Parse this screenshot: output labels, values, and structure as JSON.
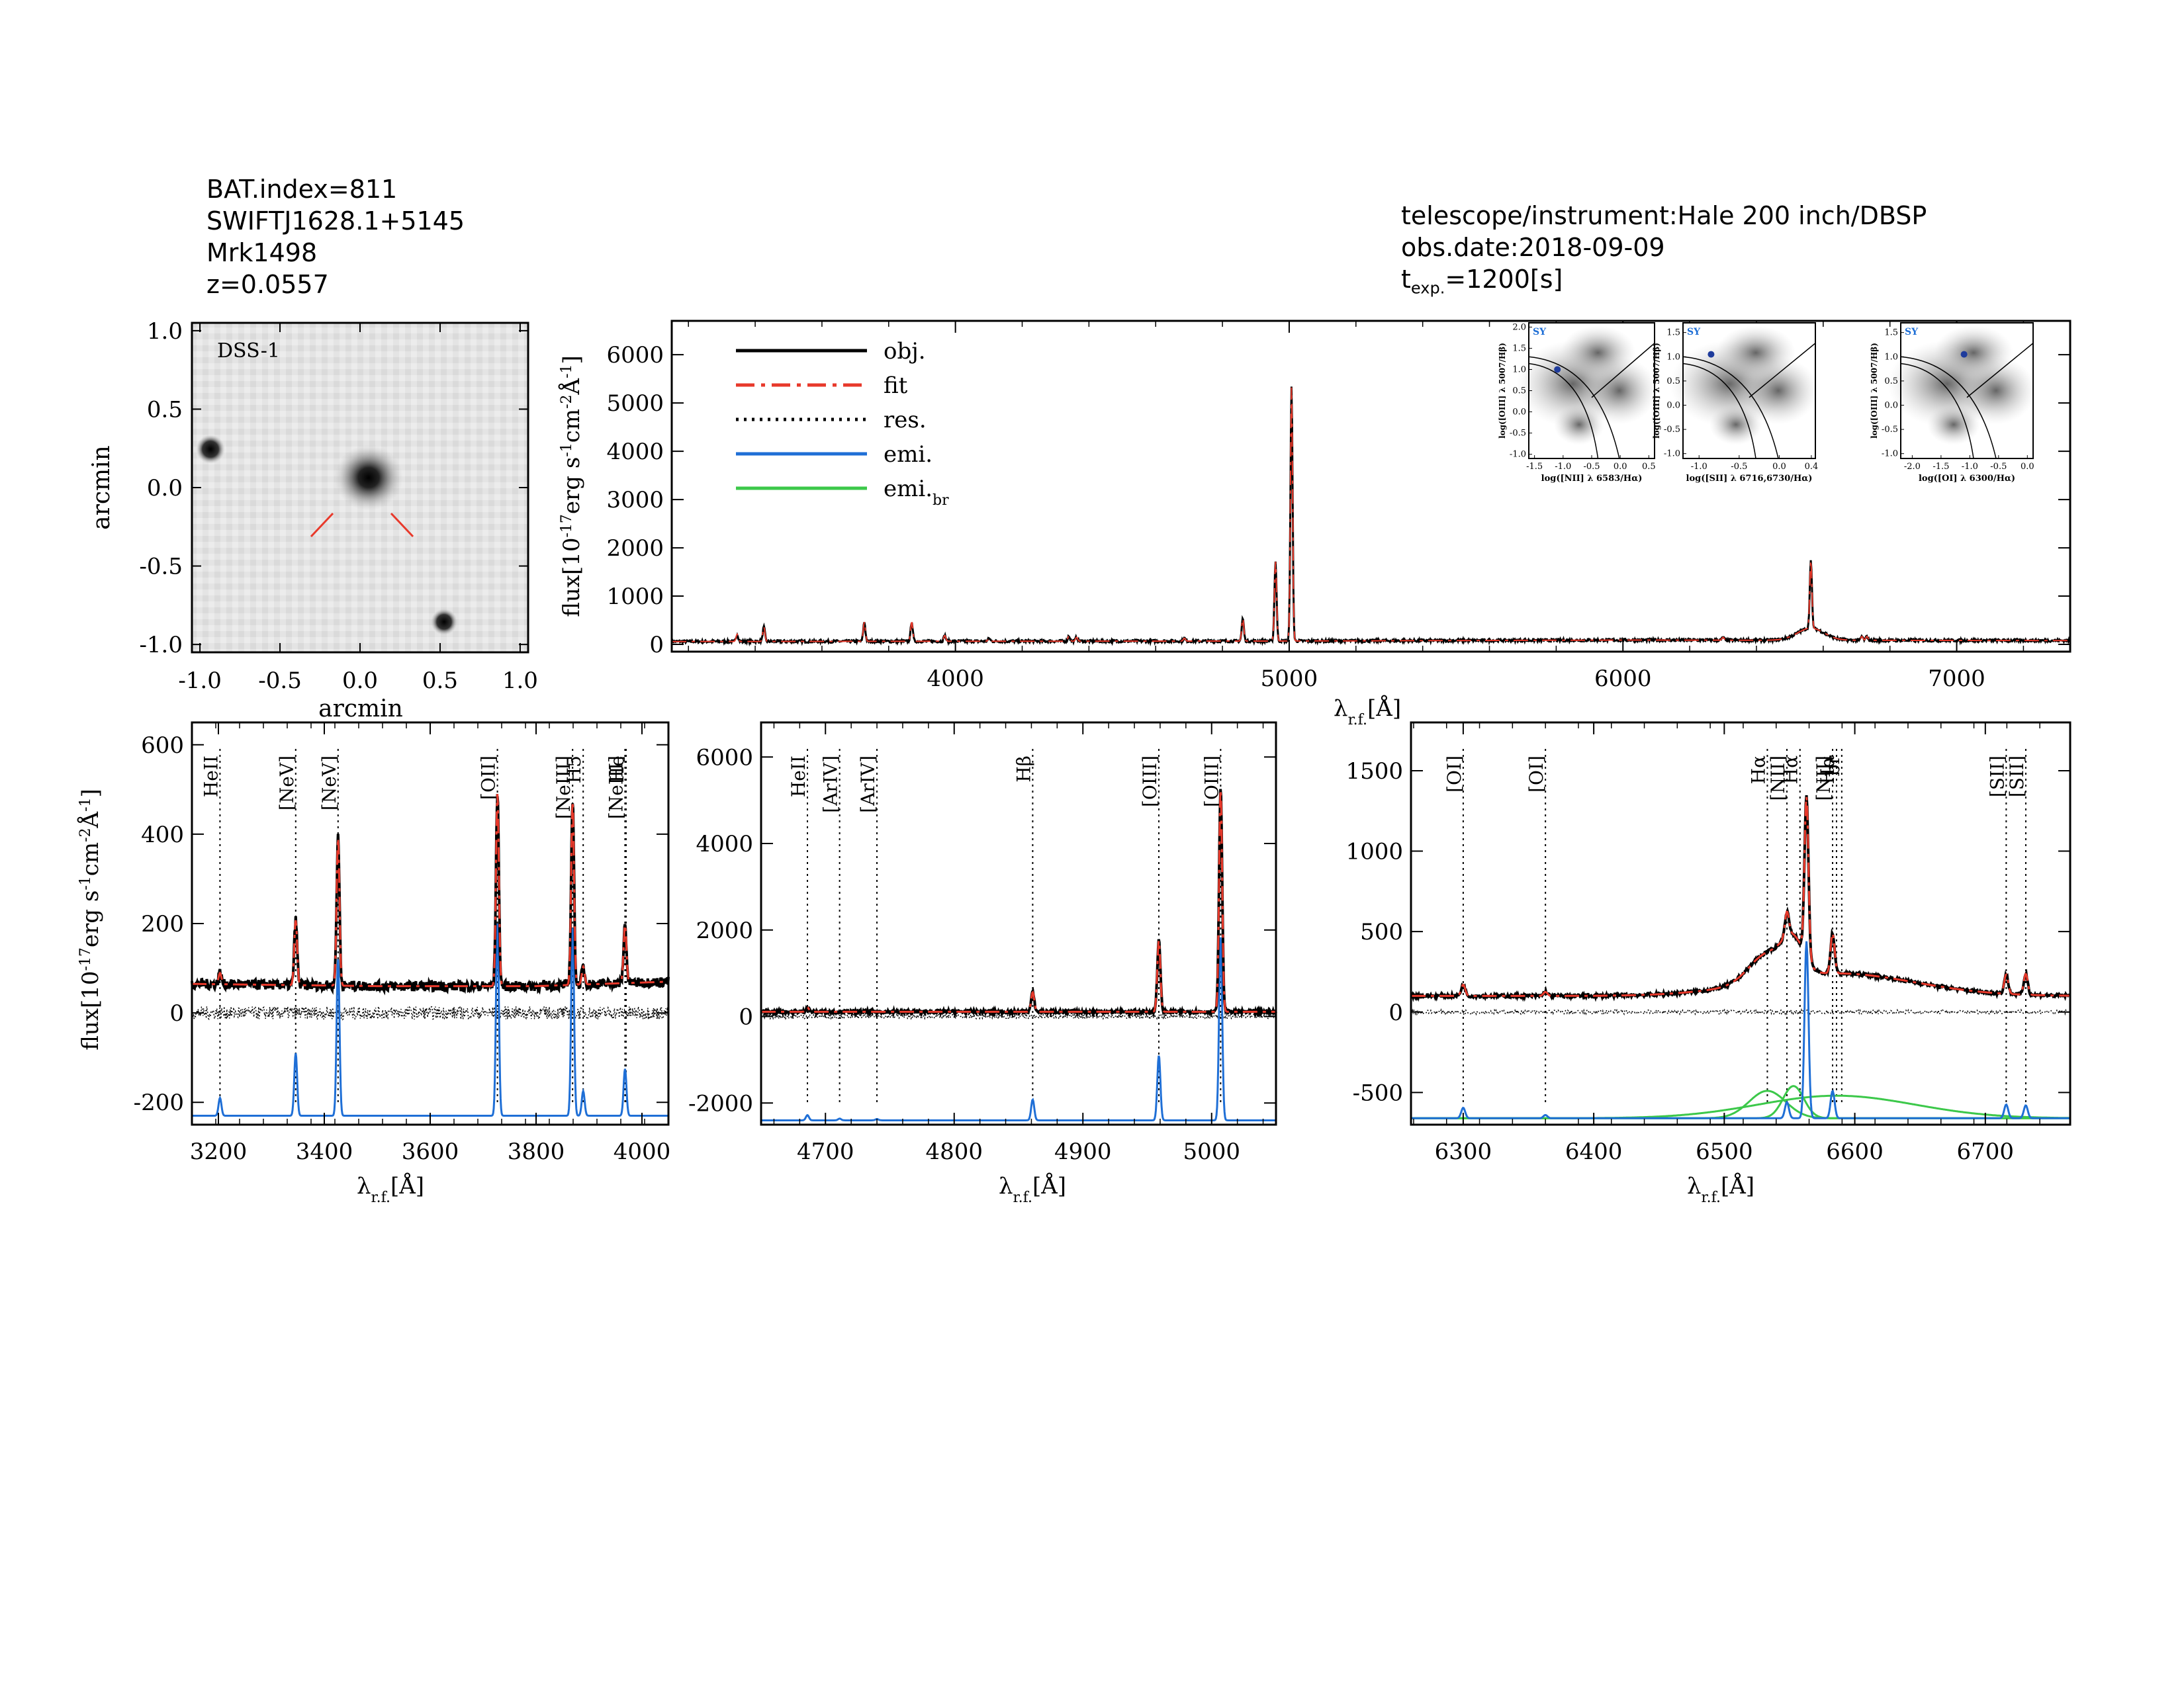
{
  "header_left": {
    "bat_index": "BAT.index=811",
    "swift": "SWIFTJ1628.1+5145",
    "name": "Mrk1498",
    "z": "z=0.0557"
  },
  "header_right": {
    "telescope": "telescope/instrument:Hale 200 inch/DBSP",
    "obs_date": "obs.date:2018-09-09",
    "texp_t": "t",
    "texp_sub": "exp.",
    "texp_val": "=1200[s]"
  },
  "image_panel": {
    "label": "DSS-1",
    "xlabel": "arcmin",
    "ylabel": "arcmin",
    "xticks": [
      "-1.0",
      "-0.5",
      "0.0",
      "0.5",
      "1.0"
    ],
    "yticks": [
      "1.0",
      "0.5",
      "0.0",
      "-0.5",
      "-1.0"
    ]
  },
  "legend": [
    "obj.",
    "fit",
    "res.",
    "emi.",
    "emi.br"
  ],
  "colors": {
    "obj": "#000000",
    "fit": "#e8392b",
    "res": "#000000",
    "emi": "#1f6fd6",
    "emi_br": "#3cc84a"
  },
  "labels": {
    "flux_ylabel": "flux[10^-17 erg s^-1 cm^-2 Å^-1]",
    "wave_xlabel": "λ r.f. [Å]"
  },
  "chart_data": [
    {
      "type": "line",
      "id": "full",
      "xlim": [
        3150,
        7340
      ],
      "ylim": [
        -150,
        6700
      ],
      "xticks": [
        4000,
        5000,
        6000,
        7000
      ],
      "yticks": [
        0,
        1000,
        2000,
        3000,
        4000,
        5000,
        6000
      ],
      "continuum": [
        [
          3150,
          60
        ],
        [
          4000,
          65
        ],
        [
          5000,
          70
        ],
        [
          6000,
          90
        ],
        [
          7340,
          80
        ]
      ],
      "lines": [
        [
          3346,
          150
        ],
        [
          3426,
          300
        ],
        [
          3727,
          400
        ],
        [
          3869,
          400
        ],
        [
          3968,
          120
        ],
        [
          4101,
          60
        ],
        [
          4340,
          110
        ],
        [
          4363,
          80
        ],
        [
          4686,
          60
        ],
        [
          4861,
          470
        ],
        [
          4959,
          1650
        ],
        [
          5007,
          5250
        ],
        [
          6300,
          60
        ],
        [
          6563,
          1400
        ],
        [
          6716,
          80
        ],
        [
          6731,
          80
        ]
      ],
      "broad": [
        [
          6563,
          250,
          40
        ]
      ]
    },
    {
      "type": "line",
      "id": "blue",
      "xlim": [
        3150,
        4050
      ],
      "ylim": [
        -250,
        650
      ],
      "xticks": [
        3200,
        3400,
        3600,
        3800,
        4000
      ],
      "yticks": [
        -200,
        0,
        200,
        400,
        600
      ],
      "line_ids": [
        {
          "label": "HeII",
          "x": 3203
        },
        {
          "label": "[NeV]",
          "x": 3346
        },
        {
          "label": "[NeV]",
          "x": 3426
        },
        {
          "label": "[OII]",
          "x": 3727
        },
        {
          "label": "[NeIII]",
          "x": 3869
        },
        {
          "label": "H5",
          "x": 3889
        },
        {
          "label": "[NeIII]",
          "x": 3968
        },
        {
          "label": "He",
          "x": 3970
        }
      ],
      "continuum": [
        [
          3150,
          65
        ],
        [
          3500,
          60
        ],
        [
          3800,
          60
        ],
        [
          4050,
          70
        ]
      ],
      "lines": [
        [
          3203,
          25
        ],
        [
          3346,
          145
        ],
        [
          3426,
          330
        ],
        [
          3727,
          430
        ],
        [
          3869,
          410
        ],
        [
          3889,
          40
        ],
        [
          3968,
          130
        ]
      ],
      "emi_offset": -230,
      "emi": [
        [
          3203,
          40
        ],
        [
          3346,
          140
        ],
        [
          3426,
          350
        ],
        [
          3727,
          430
        ],
        [
          3869,
          420
        ],
        [
          3889,
          55
        ],
        [
          3968,
          105
        ]
      ]
    },
    {
      "type": "line",
      "id": "hbeta",
      "xlim": [
        4650,
        5050
      ],
      "ylim": [
        -2500,
        6800
      ],
      "xticks": [
        4700,
        4800,
        4900,
        5000
      ],
      "yticks": [
        -2000,
        0,
        2000,
        4000,
        6000
      ],
      "line_ids": [
        {
          "label": "HeII",
          "x": 4686
        },
        {
          "label": "[ArIV]",
          "x": 4711
        },
        {
          "label": "[ArIV]",
          "x": 4740
        },
        {
          "label": "Hβ",
          "x": 4861
        },
        {
          "label": "[OIII]",
          "x": 4959
        },
        {
          "label": "[OIII]",
          "x": 5007
        }
      ],
      "continuum": [
        [
          4650,
          110
        ],
        [
          5050,
          110
        ]
      ],
      "lines": [
        [
          4686,
          100
        ],
        [
          4861,
          450
        ],
        [
          4959,
          1650
        ],
        [
          5007,
          5150
        ]
      ],
      "emi_offset": -2400,
      "emi": [
        [
          4686,
          120
        ],
        [
          4711,
          40
        ],
        [
          4740,
          30
        ],
        [
          4861,
          480
        ],
        [
          4959,
          1500
        ],
        [
          5007,
          4250
        ]
      ]
    },
    {
      "type": "line",
      "id": "halpha",
      "xlim": [
        6260,
        6765
      ],
      "ylim": [
        -700,
        1800
      ],
      "xticks": [
        6300,
        6400,
        6500,
        6600,
        6700
      ],
      "yticks": [
        -500,
        0,
        500,
        1000,
        1500
      ],
      "line_ids": [
        {
          "label": "[OI]",
          "x": 6300
        },
        {
          "label": "[OI]",
          "x": 6363
        },
        {
          "label": "Hα",
          "x": 6533
        },
        {
          "label": "[NII]",
          "x": 6548
        },
        {
          "label": "Hα",
          "x": 6558
        },
        {
          "label": "[NII]",
          "x": 6583
        },
        {
          "label": "Hα",
          "x": 6586
        },
        {
          "label": "br",
          "x": 6590
        },
        {
          "label": "[SII]",
          "x": 6716
        },
        {
          "label": "[SII]",
          "x": 6731
        }
      ],
      "continuum": [
        [
          6260,
          100
        ],
        [
          6765,
          100
        ]
      ],
      "lines": [
        [
          6300,
          70
        ],
        [
          6363,
          25
        ],
        [
          6548,
          150
        ],
        [
          6563,
          1000
        ],
        [
          6583,
          250
        ],
        [
          6716,
          120
        ],
        [
          6731,
          130
        ]
      ],
      "emi_offset": -660,
      "emi": [
        [
          6300,
          65
        ],
        [
          6363,
          20
        ],
        [
          6548,
          100
        ],
        [
          6563,
          1100
        ],
        [
          6583,
          170
        ],
        [
          6716,
          85
        ],
        [
          6731,
          80
        ]
      ],
      "broad": [
        [
          6533,
          170,
          14
        ],
        [
          6553,
          200,
          8
        ],
        [
          6586,
          140,
          60
        ]
      ]
    }
  ],
  "bpt": [
    {
      "tag": "SY",
      "xlabel": "log([NII] λ 6583/Hα)",
      "ylabel": "log([OIII] λ 5007/Hβ)",
      "xticks": [
        "-1.5",
        "-1.0",
        "-0.5",
        "0.0",
        "0.5"
      ],
      "yticks": [
        "2.0",
        "1.5",
        "1.0",
        "0.5",
        "0.0",
        "-0.5",
        "-1.0"
      ],
      "xlim": [
        -1.6,
        0.6
      ],
      "ylim": [
        -1.1,
        2.1
      ],
      "point": [
        -1.1,
        1.0
      ]
    },
    {
      "tag": "SY",
      "xlabel": "log([SII] λ 6716,6730/Hα)",
      "ylabel": "log([OIII] λ 5007/Hβ)",
      "xticks": [
        "-1.0",
        "-0.5",
        "0.0",
        "0.4"
      ],
      "yticks": [
        "1.5",
        "1.0",
        "0.5",
        "0.0",
        "-0.5",
        "-1.0"
      ],
      "xlim": [
        -1.2,
        0.45
      ],
      "ylim": [
        -1.1,
        1.7
      ],
      "point": [
        -0.85,
        1.05
      ]
    },
    {
      "tag": "SY",
      "xlabel": "log([OI] λ 6300/Hα)",
      "ylabel": "log([OIII] λ 5007/Hβ)",
      "xticks": [
        "-2.0",
        "-1.5",
        "-1.0",
        "-0.5",
        "0.0"
      ],
      "yticks": [
        "1.5",
        "1.0",
        "0.5",
        "0.0",
        "-0.5",
        "-1.0"
      ],
      "xlim": [
        -2.2,
        0.1
      ],
      "ylim": [
        -1.1,
        1.7
      ],
      "point": [
        -1.1,
        1.05
      ]
    }
  ]
}
